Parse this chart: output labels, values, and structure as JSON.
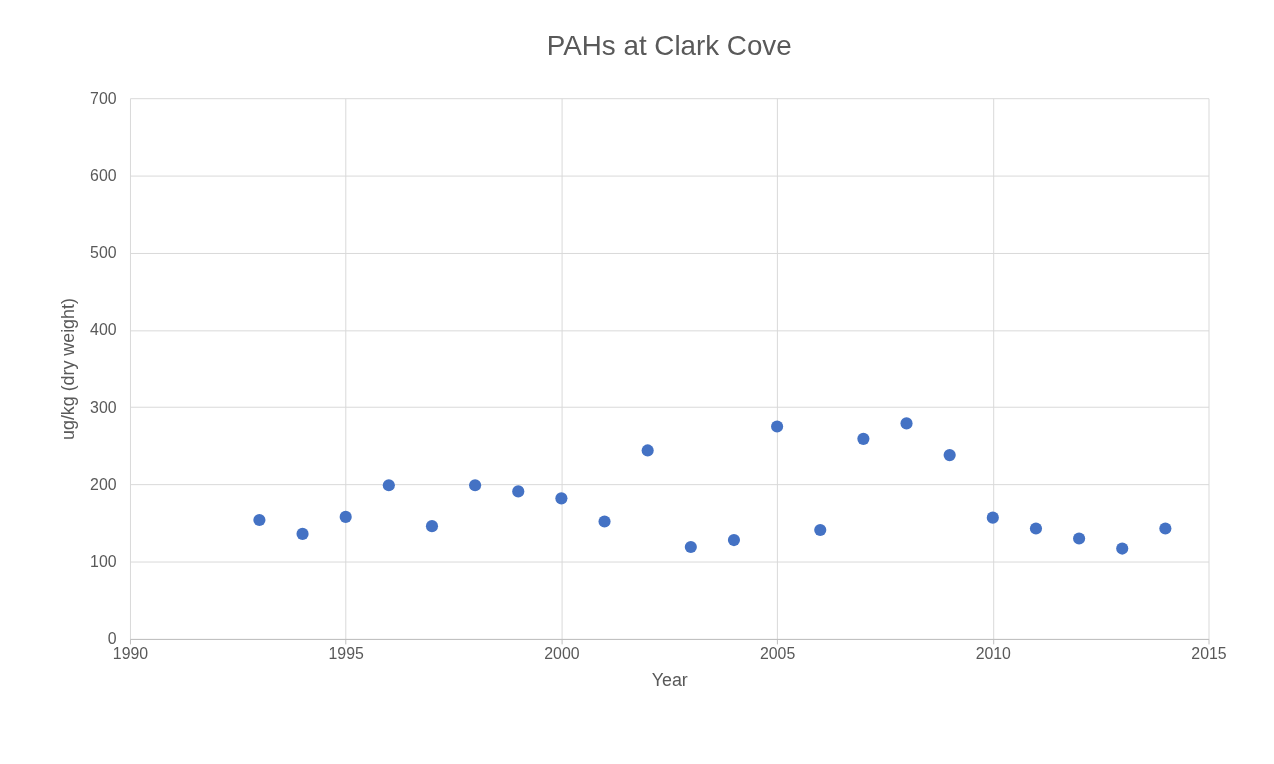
{
  "chart_data": {
    "type": "scatter",
    "title": "PAHs at Clark Cove",
    "xlabel": "Year",
    "ylabel": "ug/kg (dry weight)",
    "x": [
      1993,
      1994,
      1995,
      1996,
      1997,
      1998,
      1999,
      2000,
      2001,
      2002,
      2003,
      2004,
      2005,
      2006,
      2007,
      2008,
      2009,
      2010,
      2011,
      2012,
      2013,
      2014
    ],
    "series": [
      {
        "color": "#4472c4",
        "values": [
          154,
          136,
          158,
          199,
          146,
          199,
          191,
          182,
          152,
          244,
          119,
          128,
          275,
          141,
          259,
          279,
          238,
          157,
          143,
          130,
          117,
          143
        ]
      }
    ],
    "xlim": [
      1990,
      2015
    ],
    "xticks": [
      1990,
      1995,
      2000,
      2005,
      2010,
      2015
    ],
    "ylim": [
      0,
      700
    ],
    "yticks": [
      0,
      100,
      200,
      300,
      400,
      500,
      600,
      700
    ],
    "grid": true,
    "marker": "circle",
    "legend": false
  }
}
